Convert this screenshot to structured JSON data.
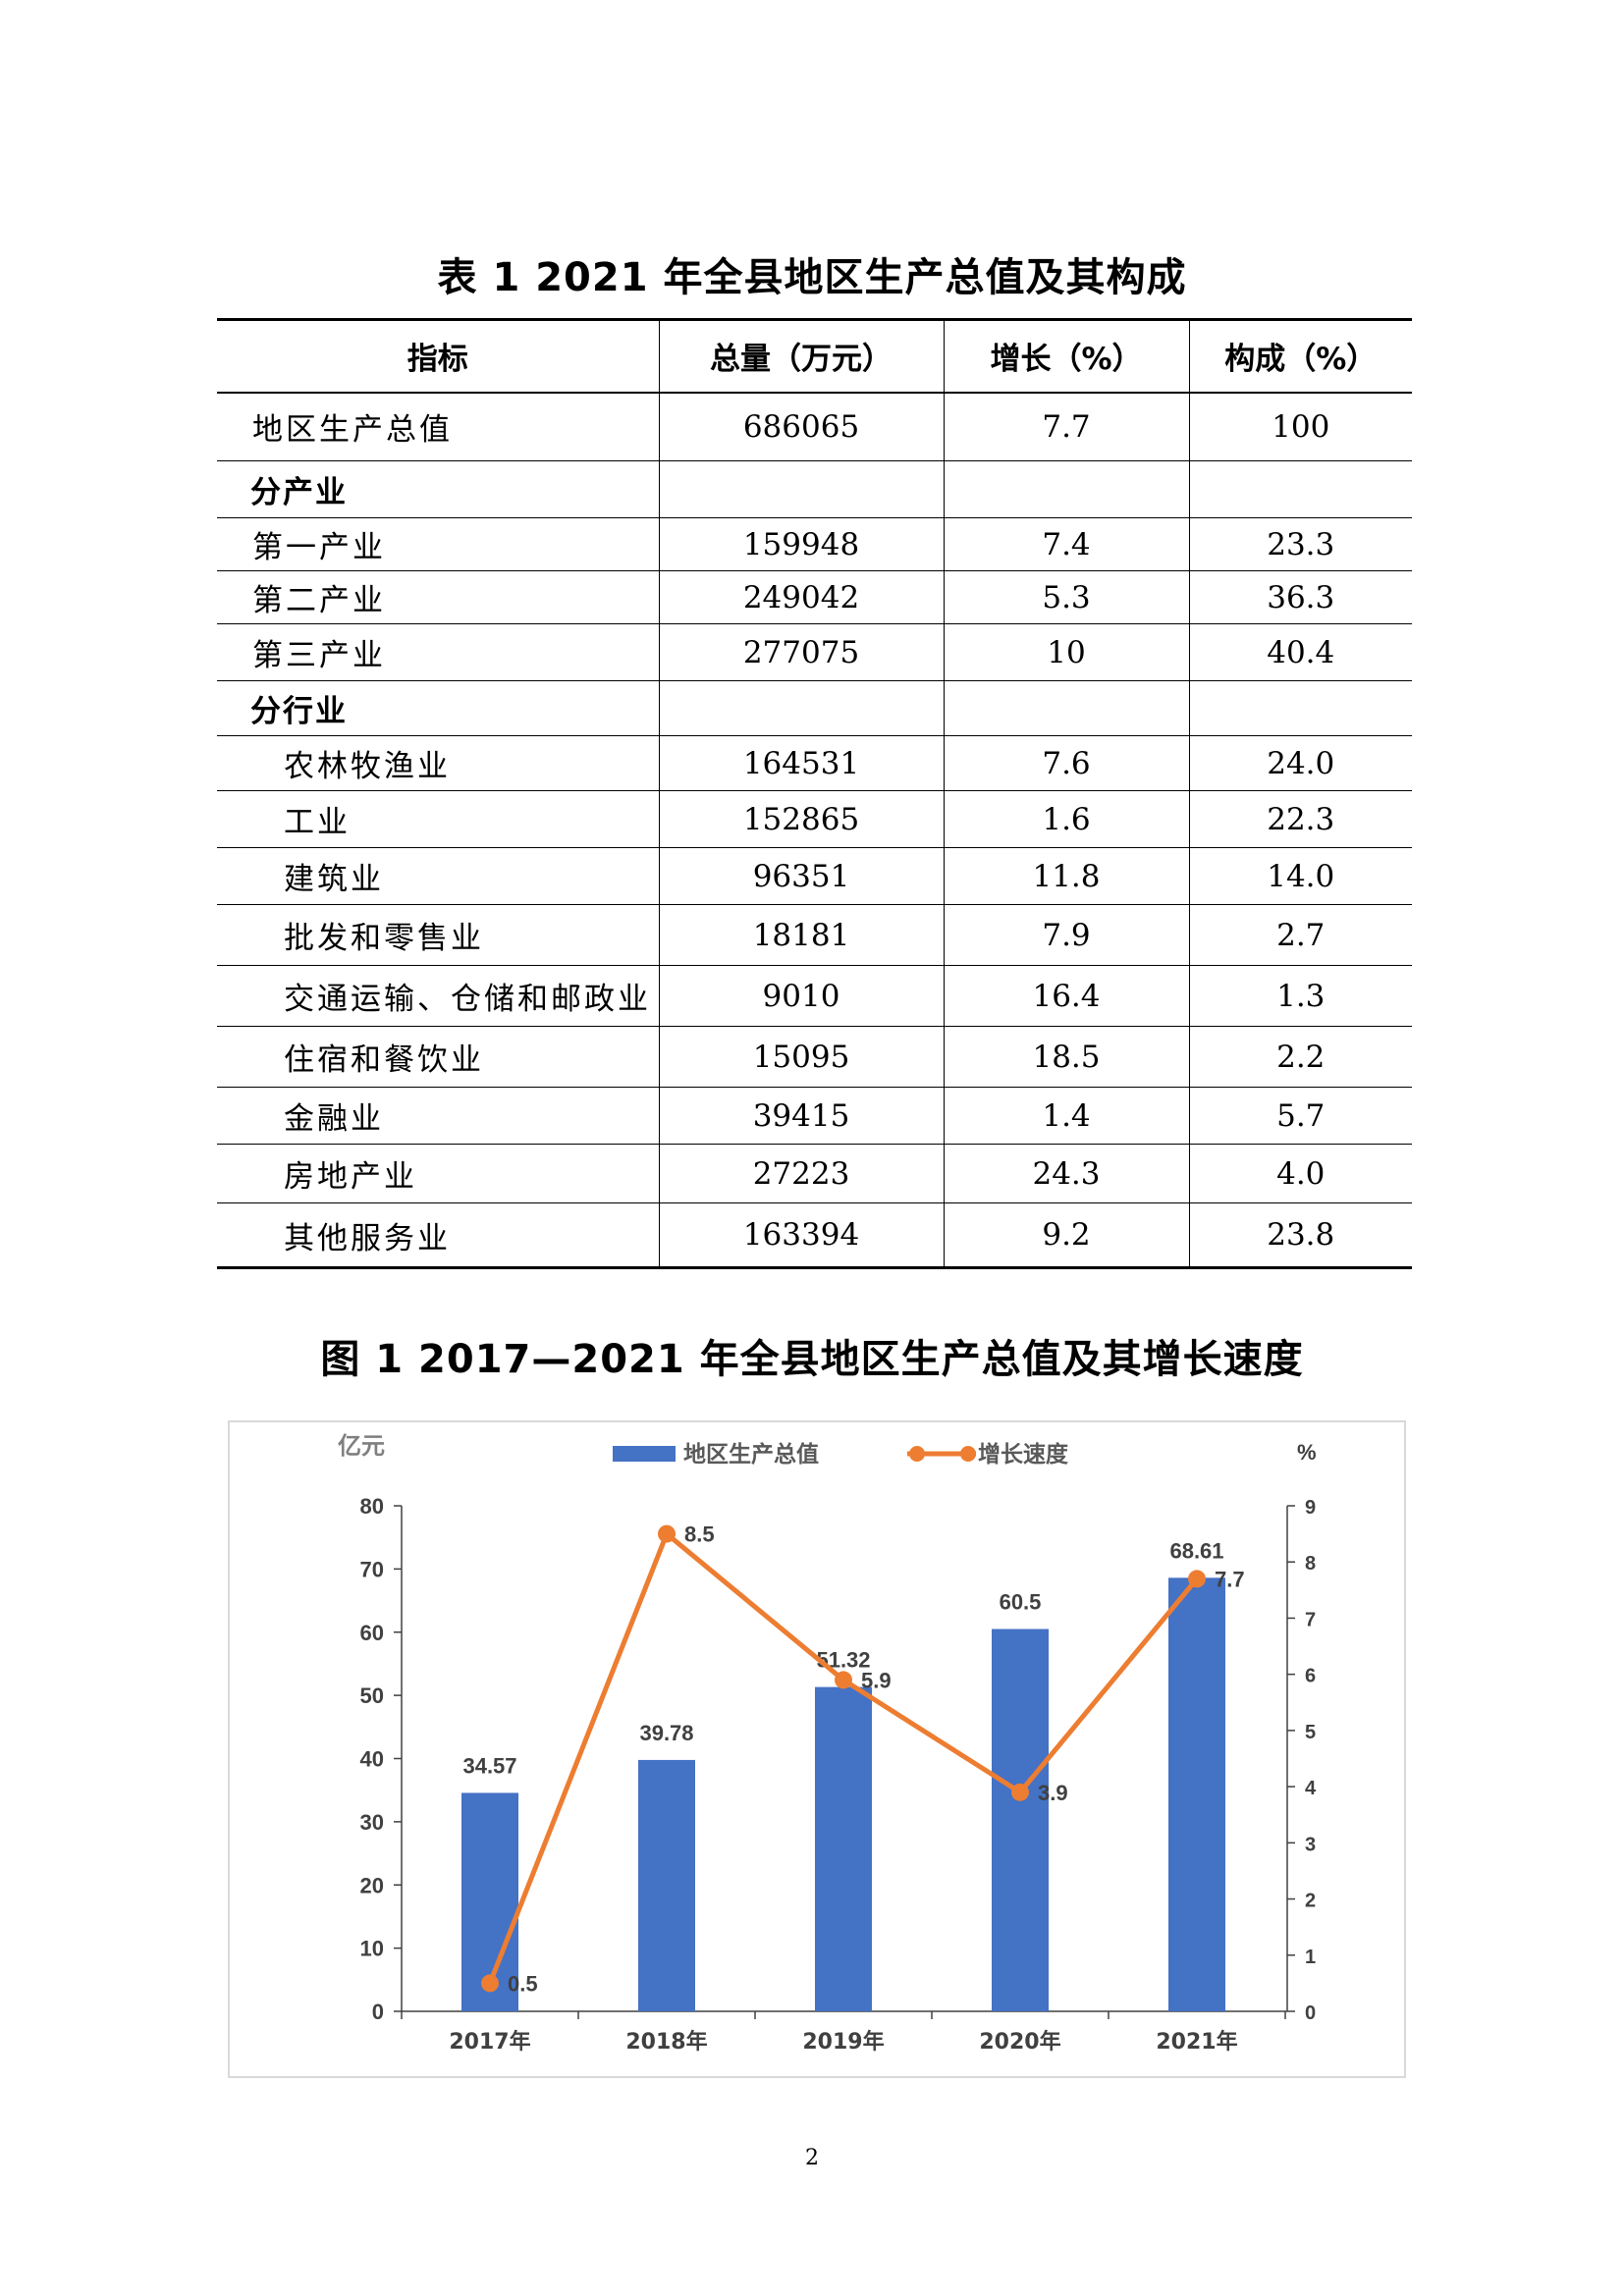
{
  "table": {
    "title": "表 1    2021 年全县地区生产总值及其构成",
    "headers": [
      "指标",
      "总量（万元）",
      "增长（%）",
      "构成（%）"
    ],
    "rows": [
      {
        "label": "地区生产总值",
        "total": "686065",
        "growth": "7.7",
        "share": "100",
        "type": "normal"
      },
      {
        "label": "分产业",
        "total": "",
        "growth": "",
        "share": "",
        "type": "section"
      },
      {
        "label": "第一产业",
        "total": "159948",
        "growth": "7.4",
        "share": "23.3",
        "type": "normal"
      },
      {
        "label": "第二产业",
        "total": "249042",
        "growth": "5.3",
        "share": "36.3",
        "type": "normal"
      },
      {
        "label": "第三产业",
        "total": "277075",
        "growth": "10",
        "share": "40.4",
        "type": "normal"
      },
      {
        "label": "分行业",
        "total": "",
        "growth": "",
        "share": "",
        "type": "section"
      },
      {
        "label": "农林牧渔业",
        "total": "164531",
        "growth": "7.6",
        "share": "24.0",
        "type": "indent"
      },
      {
        "label": "工业",
        "total": "152865",
        "growth": "1.6",
        "share": "22.3",
        "type": "indent"
      },
      {
        "label": "建筑业",
        "total": "96351",
        "growth": "11.8",
        "share": "14.0",
        "type": "indent"
      },
      {
        "label": "批发和零售业",
        "total": "18181",
        "growth": "7.9",
        "share": "2.7",
        "type": "indent"
      },
      {
        "label": "交通运输、仓储和邮政业",
        "total": "9010",
        "growth": "16.4",
        "share": "1.3",
        "type": "indent"
      },
      {
        "label": "住宿和餐饮业",
        "total": "15095",
        "growth": "18.5",
        "share": "2.2",
        "type": "indent"
      },
      {
        "label": "金融业",
        "total": "39415",
        "growth": "1.4",
        "share": "5.7",
        "type": "indent"
      },
      {
        "label": "房地产业",
        "total": "27223",
        "growth": "24.3",
        "share": "4.0",
        "type": "indent"
      },
      {
        "label": "其他服务业",
        "total": "163394",
        "growth": "9.2",
        "share": "23.8",
        "type": "indent"
      }
    ]
  },
  "chart_title": "图 1    2017—2021 年全县地区生产总值及其增长速度",
  "chart_data": {
    "type": "bar+line",
    "categories": [
      "2017年",
      "2018年",
      "2019年",
      "2020年",
      "2021年"
    ],
    "series": [
      {
        "name": "地区生产总值",
        "type": "bar",
        "axis": "left",
        "values": [
          34.57,
          39.78,
          51.32,
          60.5,
          68.61
        ],
        "labels": [
          "34.57",
          "39.78",
          "51.32",
          "60.5",
          "68.61"
        ],
        "color": "#4472C4"
      },
      {
        "name": "增长速度",
        "type": "line",
        "axis": "right",
        "values": [
          0.5,
          8.5,
          5.9,
          3.9,
          7.7
        ],
        "labels": [
          "0.5",
          "8.5",
          "5.9",
          "3.9",
          "7.7"
        ],
        "color": "#ED7D31"
      }
    ],
    "y_left": {
      "label": "亿元",
      "range": [
        0,
        80
      ],
      "ticks": [
        "0",
        "10",
        "20",
        "30",
        "40",
        "50",
        "60",
        "70",
        "80"
      ]
    },
    "y_right": {
      "label": "%",
      "range": [
        0,
        9
      ],
      "ticks": [
        "0",
        "1",
        "2",
        "3",
        "4",
        "5",
        "6",
        "7",
        "8",
        "9"
      ]
    },
    "legend_position": "top",
    "grid": false
  },
  "page_number": "2"
}
